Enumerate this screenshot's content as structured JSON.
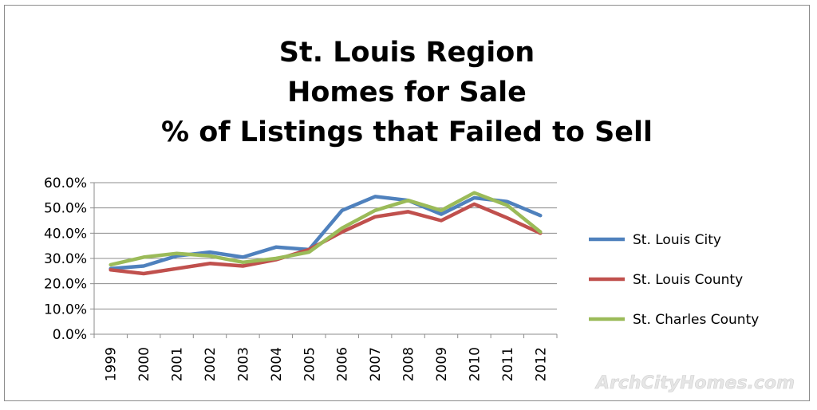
{
  "chart_data": {
    "type": "line",
    "title_lines": [
      "St. Louis Region",
      "Homes for Sale",
      "% of Listings that Failed to Sell"
    ],
    "categories": [
      "1999",
      "2000",
      "2001",
      "2002",
      "2003",
      "2004",
      "2005",
      "2006",
      "2007",
      "2008",
      "2009",
      "2010",
      "2011",
      "2012"
    ],
    "y_ticks": [
      "0.0%",
      "10.0%",
      "20.0%",
      "30.0%",
      "40.0%",
      "50.0%",
      "60.0%"
    ],
    "ylim": [
      0,
      60
    ],
    "grid": true,
    "legend_position": "right",
    "series": [
      {
        "name": "St. Louis City",
        "color": "#4f81bd",
        "values": [
          26.0,
          27.0,
          31.0,
          32.5,
          30.5,
          34.5,
          33.5,
          49.0,
          54.5,
          53.0,
          47.5,
          54.0,
          52.5,
          47.0
        ]
      },
      {
        "name": "St. Louis County",
        "color": "#c0504d",
        "values": [
          25.5,
          24.0,
          26.0,
          28.0,
          27.0,
          29.5,
          33.5,
          40.5,
          46.5,
          48.5,
          45.0,
          51.5,
          46.0,
          40.0
        ]
      },
      {
        "name": "St. Charles County",
        "color": "#9bbb59",
        "values": [
          27.5,
          30.5,
          32.0,
          31.0,
          28.5,
          30.0,
          32.5,
          42.0,
          49.0,
          53.0,
          49.0,
          56.0,
          51.0,
          40.5
        ]
      }
    ]
  },
  "watermark": "ArchCityHomes.com"
}
